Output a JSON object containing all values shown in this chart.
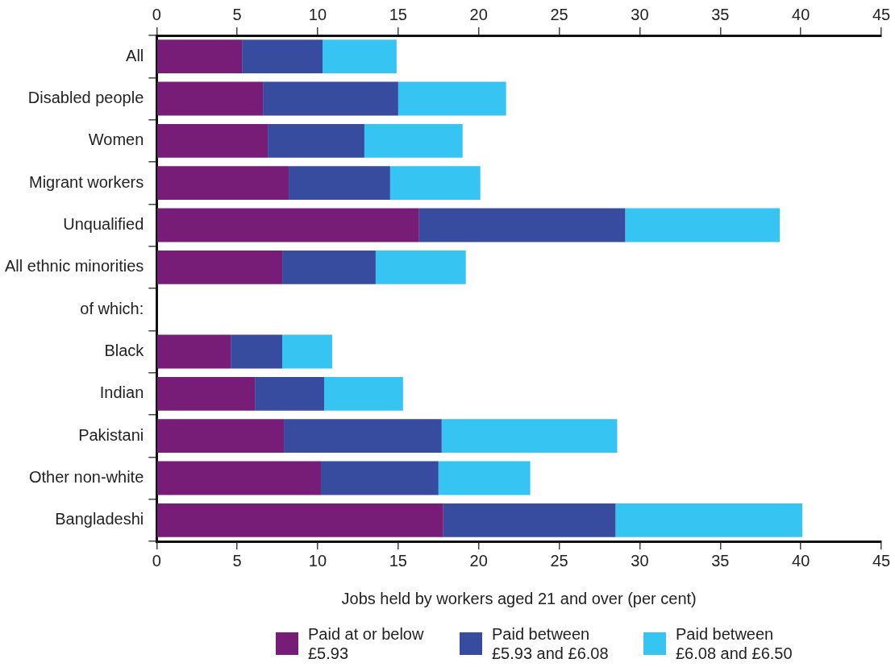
{
  "chart_data": {
    "type": "bar",
    "orientation": "horizontal",
    "stacked": true,
    "xlabel": "Jobs held by workers aged 21 and over (per cent)",
    "annotations": [
      "of which:"
    ],
    "categories": [
      "All",
      "Disabled people",
      "Women",
      "Migrant workers",
      "Unqualified",
      "All ethnic minorities",
      null,
      "Black",
      "Indian",
      "Pakistani",
      "Other non-white",
      "Bangladeshi"
    ],
    "series": [
      {
        "name": "Paid at or below £5.93",
        "color": "#771d78",
        "values": [
          5.3,
          6.6,
          6.9,
          8.2,
          16.3,
          7.8,
          null,
          4.6,
          6.1,
          7.9,
          10.2,
          17.8
        ]
      },
      {
        "name": "Paid between £5.93 and £6.08",
        "color": "#374b9f",
        "values": [
          5.0,
          8.4,
          6.0,
          6.3,
          12.8,
          5.8,
          null,
          3.2,
          4.3,
          9.8,
          7.3,
          10.7
        ]
      },
      {
        "name": "Paid between £6.08 and £6.50",
        "color": "#36c5f2",
        "values": [
          4.6,
          6.7,
          6.1,
          5.6,
          9.6,
          5.6,
          null,
          3.1,
          4.9,
          10.9,
          5.7,
          11.6
        ]
      }
    ],
    "xlim": [
      0,
      45
    ],
    "xticks": [
      0,
      5,
      10,
      15,
      20,
      25,
      30,
      35,
      40,
      45
    ],
    "x2lim": [
      0,
      45
    ],
    "x2ticks": [
      0,
      5,
      10,
      15,
      20,
      25,
      30,
      35,
      40,
      45
    ],
    "grid": false,
    "legend": "bottom"
  }
}
